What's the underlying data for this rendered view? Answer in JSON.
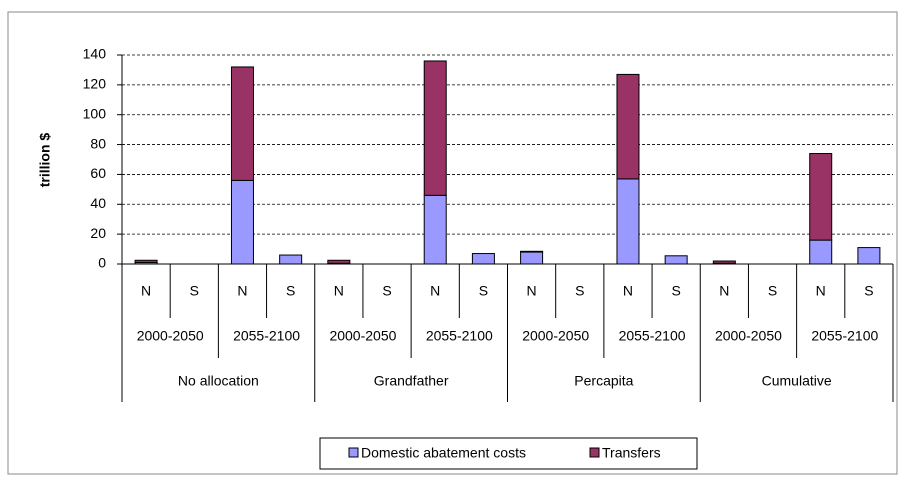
{
  "chart_data": {
    "type": "stacked_bar",
    "y_label": "trillion $",
    "categories": [
      "N",
      "S",
      "N",
      "S",
      "N",
      "S",
      "N",
      "S",
      "N",
      "S",
      "N",
      "S",
      "N",
      "S",
      "N",
      "S"
    ],
    "category_groups": [
      {
        "name": "No allocation",
        "periods": [
          "2000-2050",
          "2055-2100"
        ]
      },
      {
        "name": "Grandfather",
        "periods": [
          "2000-2050",
          "2055-2100"
        ]
      },
      {
        "name": "Percapita",
        "periods": [
          "2000-2050",
          "2055-2100"
        ]
      },
      {
        "name": "Cumulative",
        "periods": [
          "2000-2050",
          "2055-2100"
        ]
      }
    ],
    "series": [
      {
        "name": "Domestic abatement costs",
        "color": "#9999ff",
        "values": [
          1,
          0,
          56,
          6,
          0.5,
          0,
          46,
          7,
          8,
          0,
          57,
          5.5,
          0.5,
          0,
          16,
          11
        ]
      },
      {
        "name": "Transfers",
        "color": "#993366",
        "values": [
          1.5,
          0,
          76,
          0,
          2,
          0,
          90,
          0,
          0.5,
          0,
          70,
          0,
          1.5,
          0,
          58,
          0
        ]
      }
    ],
    "ylim": [
      0,
      140
    ],
    "yticks": [
      0,
      20,
      40,
      60,
      80,
      100,
      120,
      140
    ],
    "grid": true
  }
}
